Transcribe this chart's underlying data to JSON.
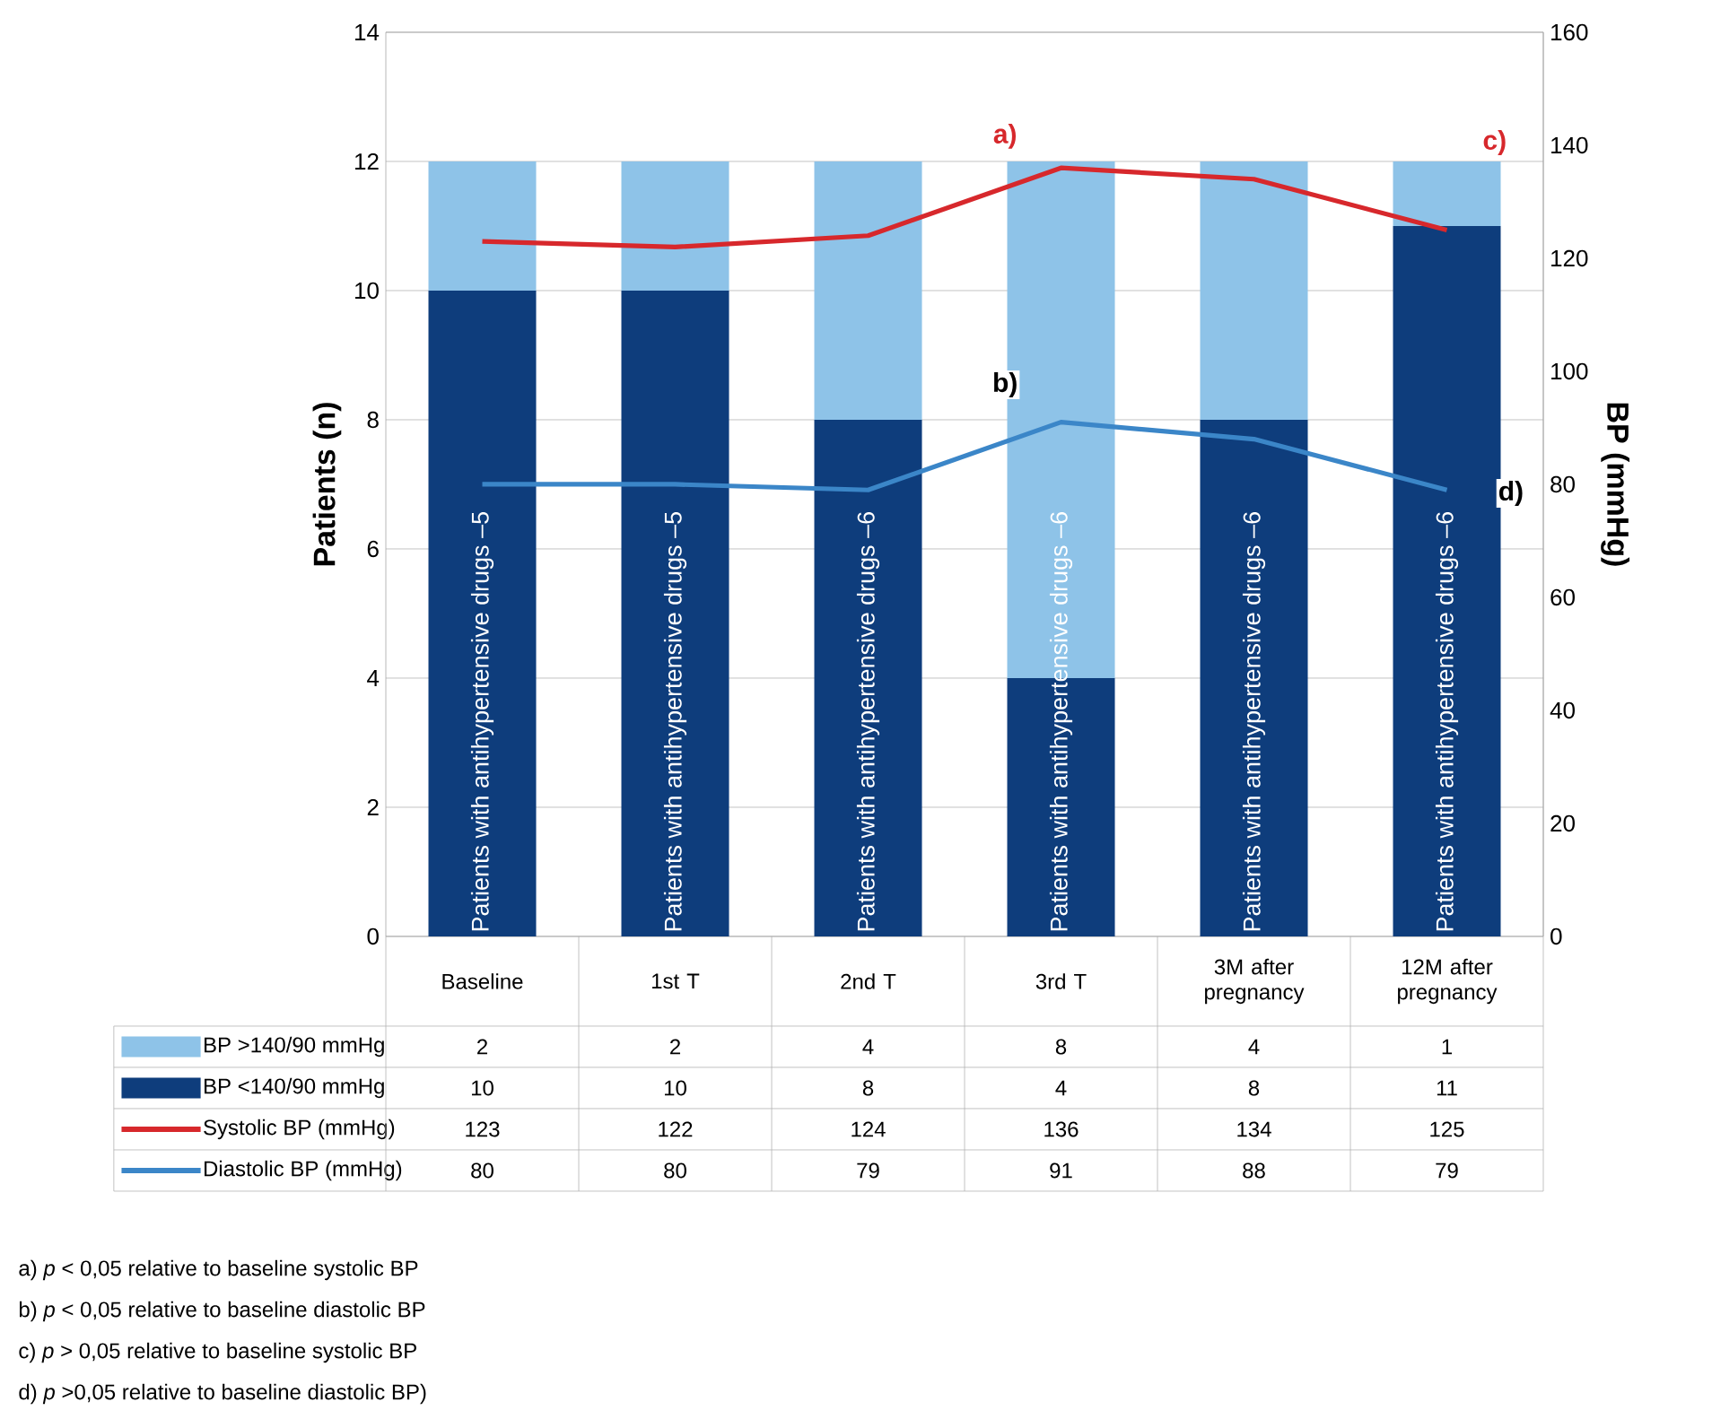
{
  "chart_data": {
    "type": "bar",
    "stacked": true,
    "categories": [
      "Baseline",
      "1st T",
      "2nd T",
      "3rd T",
      "3M after pregnancy",
      "12M after pregnancy"
    ],
    "series": [
      {
        "name": "BP <140/90 mmHg",
        "color": "#0e3d7c",
        "values": [
          10,
          10,
          8,
          4,
          8,
          11
        ]
      },
      {
        "name": "BP >140/90 mmHg",
        "color": "#8ec3e8",
        "values": [
          2,
          2,
          4,
          8,
          4,
          1
        ]
      },
      {
        "name": "Systolic BP (mmHg)",
        "type": "line",
        "axis": "y2",
        "color": "#d7282c",
        "values": [
          123,
          122,
          124,
          136,
          134,
          125
        ]
      },
      {
        "name": "Diastolic BP (mmHg)",
        "type": "line",
        "axis": "y2",
        "color": "#3b86c8",
        "values": [
          80,
          80,
          79,
          91,
          88,
          79
        ]
      }
    ],
    "ylabel": "Patients (n)",
    "y2label": "BP (mmHg)",
    "ylim": [
      0,
      14
    ],
    "yticks": [
      0,
      2,
      4,
      6,
      8,
      10,
      12,
      14
    ],
    "y2lim": [
      0,
      160
    ],
    "y2ticks": [
      0,
      20,
      40,
      60,
      80,
      100,
      120,
      140,
      160
    ],
    "grid": "y",
    "legend": "bottom",
    "data_labels": true,
    "marker": "none",
    "line_style": "solid",
    "annotations": [
      "Patients with antihypertensive drugs –5",
      "Patients with antihypertensive drugs –5",
      "Patients with antihypertensive drugs –6",
      "Patients with antihypertensive drugs –6",
      "Patients with antihypertensive drugs –6",
      "Patients with antihypertensive drugs –6",
      "a)",
      "b)",
      "c)",
      "d)",
      "a) *p* < 0,05 relative to baseline systolic BP",
      "b) *p* < 0,05 relative to baseline diastolic BP",
      "c) *p* > 0,05 relative to baseline systolic BP",
      "d) *p* >0,05 relative to baseline diastolic BP)"
    ]
  }
}
